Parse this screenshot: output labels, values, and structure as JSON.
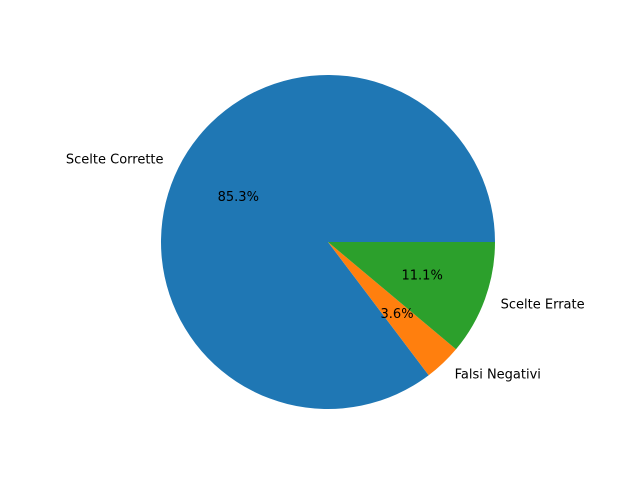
{
  "chart_data": {
    "type": "pie",
    "start_angle_deg": 0,
    "direction": "counterclockwise",
    "slices": [
      {
        "label": "Scelte Corrette",
        "percent_label": "85.3%",
        "value": 85.3,
        "color": "#1f77b4"
      },
      {
        "label": "Falsi Negativi",
        "percent_label": "3.6%",
        "value": 3.6,
        "color": "#ff7f0e"
      },
      {
        "label": "Scelte Errate",
        "percent_label": "11.1%",
        "value": 11.1,
        "color": "#2ca02c"
      }
    ]
  }
}
